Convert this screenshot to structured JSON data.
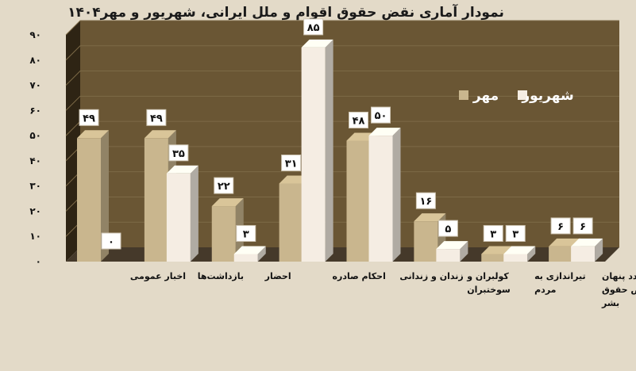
{
  "chart_data": {
    "type": "bar",
    "title": "نمودار آماری نقض حقوق اقوام و ملل ایرانی، شهریور و مهر۱۴۰۴",
    "categories": [
      "اخبار عمومی",
      "بازداشت‌ها",
      "احضار",
      "احکام صادره",
      "زندان و زندانی",
      "کولبران و سوختبران",
      "تیراندازی به مردم",
      "مواردد پنهان نقض حقوق بشر"
    ],
    "category_lines": [
      [
        "اخبار عمومی"
      ],
      [
        "بازداشت‌ها"
      ],
      [
        "احضار"
      ],
      [
        "احکام صادره"
      ],
      [
        "زندان و زندانی"
      ],
      [
        "کولبران و",
        "سوختبران"
      ],
      [
        "تیراندازی به",
        "مردم"
      ],
      [
        "مواردد پنهان",
        "نقض حقوق",
        "بشر"
      ]
    ],
    "series": [
      {
        "name": "مهر",
        "color": "#c9b68e",
        "values": [
          49,
          49,
          22,
          31,
          48,
          16,
          3,
          6
        ],
        "labels": [
          "۴۹",
          "۴۹",
          "۲۲",
          "۳۱",
          "۴۸",
          "۱۶",
          "۳",
          "۶"
        ]
      },
      {
        "name": "شهریور",
        "color": "#f5ede3",
        "values": [
          0,
          35,
          3,
          85,
          50,
          5,
          3,
          6
        ],
        "labels": [
          "۰",
          "۳۵",
          "۳",
          "۸۵",
          "۵۰",
          "۵",
          "۳",
          "۶"
        ]
      }
    ],
    "ylim": [
      0,
      90
    ],
    "yticks": [
      0,
      10,
      20,
      30,
      40,
      50,
      60,
      70,
      80,
      90
    ],
    "ytick_labels": [
      "۰",
      "۱۰",
      "۲۰",
      "۳۰",
      "۴۰",
      "۵۰",
      "۶۰",
      "۷۰",
      "۸۰",
      "۹۰"
    ],
    "grid": true,
    "legend_position": "top-right",
    "colors": {
      "wall": "#6a5634",
      "side_wall": "#2e2414",
      "floor": "#45392a",
      "background": "#e3dac8"
    }
  }
}
